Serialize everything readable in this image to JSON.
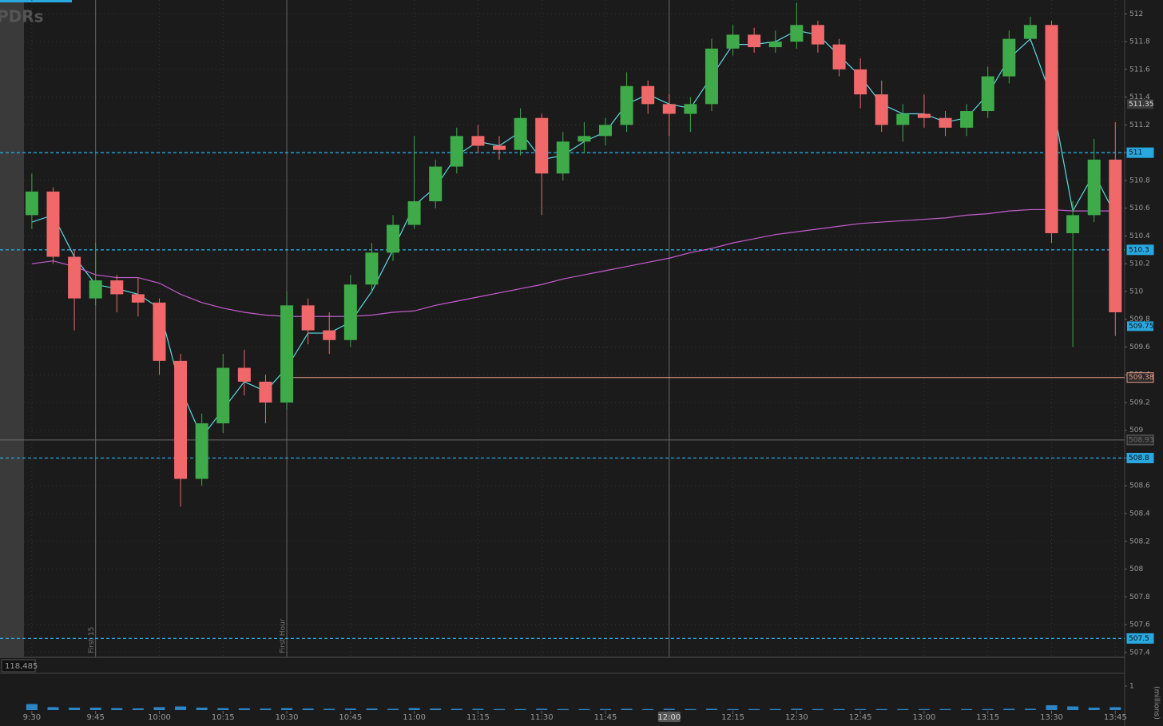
{
  "watermark": "PDRs",
  "chart_data": {
    "type": "candlestick",
    "x": [
      570,
      575,
      580,
      585,
      590,
      595,
      600,
      605,
      610,
      615,
      620,
      625,
      630,
      635,
      640,
      645,
      650,
      655,
      660,
      665,
      670,
      675,
      680,
      685,
      690,
      695,
      700,
      705,
      710,
      715,
      720,
      725,
      730,
      735,
      740,
      745,
      750,
      755,
      760,
      765,
      770,
      775,
      780,
      785,
      790,
      795,
      800,
      805,
      810,
      815,
      820,
      825
    ],
    "open": [
      510.55,
      510.72,
      510.25,
      509.95,
      510.08,
      509.98,
      509.92,
      509.5,
      508.65,
      509.05,
      509.45,
      509.35,
      509.2,
      509.9,
      509.72,
      509.65,
      510.05,
      510.28,
      510.48,
      510.65,
      510.9,
      511.12,
      511.05,
      511.02,
      511.25,
      510.85,
      511.08,
      511.12,
      511.2,
      511.48,
      511.35,
      511.28,
      511.35,
      511.75,
      511.85,
      511.76,
      511.8,
      511.92,
      511.78,
      511.6,
      511.42,
      511.2,
      511.28,
      511.25,
      511.18,
      511.3,
      511.55,
      511.82,
      511.92,
      510.42,
      510.55,
      510.95
    ],
    "high": [
      510.85,
      510.75,
      510.3,
      510.35,
      510.12,
      510.1,
      509.95,
      509.55,
      509.12,
      509.55,
      509.58,
      509.4,
      510,
      509.95,
      509.85,
      510.12,
      510.35,
      510.55,
      511.12,
      510.95,
      511.18,
      511.2,
      511.12,
      511.32,
      511.28,
      511.15,
      511.22,
      511.25,
      511.58,
      511.52,
      511.42,
      511.4,
      511.82,
      511.92,
      511.9,
      511.88,
      512.08,
      511.95,
      511.82,
      511.68,
      511.52,
      511.35,
      511.42,
      511.3,
      511.35,
      511.62,
      511.88,
      511.98,
      511.95,
      510.65,
      511.1,
      511.22
    ],
    "low": [
      510.45,
      510.2,
      509.72,
      509.9,
      509.85,
      509.82,
      509.4,
      508.45,
      508.6,
      508.98,
      509.25,
      509.05,
      509.15,
      509.62,
      509.55,
      509.6,
      510,
      510.22,
      510.45,
      510.6,
      510.85,
      511,
      510.95,
      510.98,
      510.55,
      510.8,
      511,
      511.05,
      511.15,
      511.28,
      511.12,
      511.15,
      511.3,
      511.7,
      511.72,
      511.72,
      511.75,
      511.72,
      511.55,
      511.32,
      511.15,
      511.08,
      511.18,
      511.12,
      511.12,
      511.25,
      511.5,
      511.8,
      510.35,
      509.6,
      510.5,
      509.68
    ],
    "close": [
      510.72,
      510.25,
      509.95,
      510.08,
      509.98,
      509.92,
      509.5,
      508.65,
      509.05,
      509.45,
      509.35,
      509.2,
      509.9,
      509.72,
      509.65,
      510.05,
      510.28,
      510.48,
      510.65,
      510.9,
      511.12,
      511.05,
      511.02,
      511.25,
      510.85,
      511.08,
      511.12,
      511.2,
      511.48,
      511.35,
      511.28,
      511.35,
      511.75,
      511.85,
      511.76,
      511.8,
      511.92,
      511.78,
      511.6,
      511.42,
      511.2,
      511.28,
      511.25,
      511.18,
      511.3,
      511.55,
      511.82,
      511.92,
      510.42,
      510.55,
      510.95,
      509.85
    ],
    "up_color": "#3faa4a",
    "down_color": "#f0686a",
    "overlays": [
      {
        "color": "#5fd8e0",
        "values": [
          510.5,
          510.55,
          510.25,
          510.05,
          510.02,
          509.98,
          509.88,
          509.3,
          508.95,
          509.15,
          509.35,
          509.28,
          509.45,
          509.7,
          509.7,
          509.78,
          510,
          510.3,
          510.62,
          510.75,
          510.98,
          511.08,
          511.05,
          511.15,
          510.95,
          510.98,
          511.08,
          511.15,
          511.35,
          511.42,
          511.35,
          511.32,
          511.55,
          511.78,
          511.78,
          511.8,
          511.88,
          511.85,
          511.7,
          511.55,
          511.35,
          511.28,
          511.28,
          511.22,
          511.25,
          511.42,
          511.68,
          511.82,
          511.4,
          510.58,
          510.85,
          510.55
        ]
      },
      {
        "color": "#c45ccf",
        "values": [
          510.2,
          510.22,
          510.18,
          510.12,
          510.1,
          510.1,
          510.06,
          509.98,
          509.92,
          509.88,
          509.85,
          509.83,
          509.82,
          509.82,
          509.82,
          509.82,
          509.83,
          509.85,
          509.86,
          509.9,
          509.93,
          509.96,
          509.99,
          510.02,
          510.05,
          510.09,
          510.12,
          510.15,
          510.18,
          510.21,
          510.24,
          510.28,
          510.31,
          510.35,
          510.38,
          510.41,
          510.43,
          510.45,
          510.47,
          510.49,
          510.5,
          510.51,
          510.52,
          510.53,
          510.55,
          510.56,
          510.58,
          510.59,
          510.59,
          510.58,
          510.58,
          510.58
        ]
      }
    ],
    "xlim": [
      562.5,
      827.2
    ],
    "ylim": [
      507.37,
      512.1
    ],
    "xticks": [
      {
        "value": 570,
        "label": "9:30"
      },
      {
        "value": 585,
        "label": "9:45"
      },
      {
        "value": 600,
        "label": "10:00"
      },
      {
        "value": 615,
        "label": "10:15"
      },
      {
        "value": 630,
        "label": "10:30"
      },
      {
        "value": 645,
        "label": "10:45"
      },
      {
        "value": 660,
        "label": "11:00"
      },
      {
        "value": 675,
        "label": "11:15"
      },
      {
        "value": 690,
        "label": "11:30"
      },
      {
        "value": 705,
        "label": "11:45"
      },
      {
        "value": 720,
        "label": "12:00",
        "highlight": true
      },
      {
        "value": 735,
        "label": "12:15"
      },
      {
        "value": 750,
        "label": "12:30"
      },
      {
        "value": 765,
        "label": "12:45"
      },
      {
        "value": 780,
        "label": "13:00"
      },
      {
        "value": 795,
        "label": "13:15"
      },
      {
        "value": 810,
        "label": "13:30"
      },
      {
        "value": 825,
        "label": "13:45"
      }
    ],
    "yticks": [
      507.4,
      507.6,
      507.8,
      508,
      508.2,
      508.4,
      508.6,
      508.8,
      509,
      509.2,
      509.4,
      509.6,
      509.8,
      510,
      510.2,
      510.4,
      510.6,
      510.8,
      511,
      511.2,
      511.4,
      511.6,
      511.8,
      512
    ],
    "grid": true,
    "levels": [
      {
        "value": 511,
        "color": "#29a8e0",
        "dashed": true
      },
      {
        "value": 510.3,
        "color": "#29a8e0",
        "dashed": true
      },
      {
        "value": 508.8,
        "color": "#29a8e0",
        "dashed": true
      },
      {
        "value": 507.5,
        "color": "#29a8e0",
        "dashed": true
      },
      {
        "value": 509.38,
        "color": "#e89a8a",
        "from": 630
      },
      {
        "value": 508.93,
        "color": "#6a6a6a"
      }
    ],
    "badges": [
      {
        "value": 511.35,
        "color": "#3a3a3a"
      },
      {
        "value": 509.75,
        "color": "#29a8e0"
      }
    ],
    "markers": [
      {
        "x": 585,
        "label": "First 15"
      },
      {
        "x": 630,
        "label": "First Hour"
      },
      {
        "x": 720
      }
    ],
    "volume": {
      "values": [
        0.25,
        0.12,
        0.1,
        0.1,
        0.08,
        0.07,
        0.12,
        0.15,
        0.1,
        0.08,
        0.07,
        0.06,
        0.08,
        0.06,
        0.05,
        0.06,
        0.06,
        0.05,
        0.08,
        0.06,
        0.05,
        0.05,
        0.04,
        0.04,
        0.05,
        0.04,
        0.04,
        0.04,
        0.05,
        0.04,
        0.05,
        0.04,
        0.05,
        0.04,
        0.04,
        0.04,
        0.05,
        0.04,
        0.04,
        0.04,
        0.04,
        0.04,
        0.04,
        0.04,
        0.04,
        0.04,
        0.05,
        0.05,
        0.2,
        0.15,
        0.1,
        0.12
      ],
      "color": "#2b86c8",
      "ylim": [
        0,
        1.5
      ],
      "yticks": [
        1
      ],
      "readout": "118,485",
      "axis_label": "(millions)"
    }
  }
}
